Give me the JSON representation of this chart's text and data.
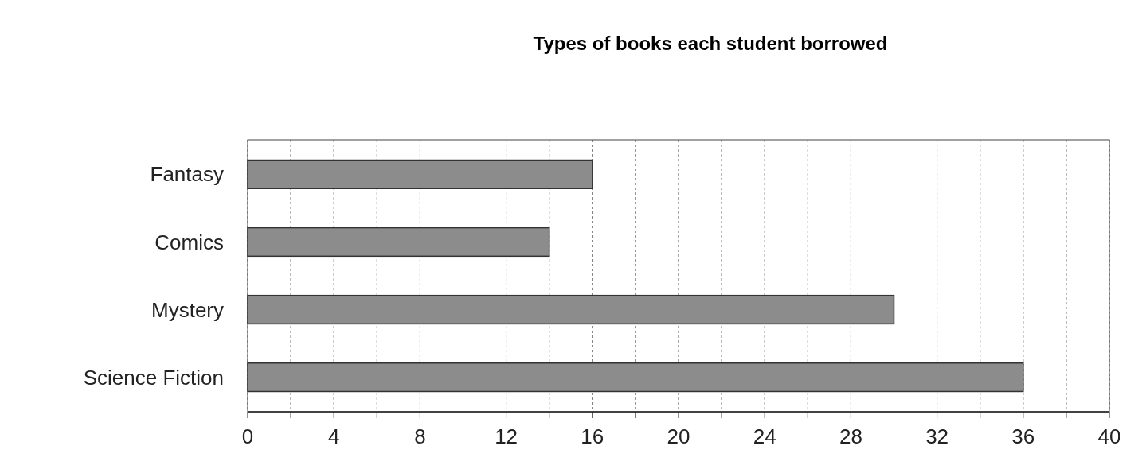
{
  "chart_data": {
    "type": "bar",
    "title": "Types of books each student borrowed",
    "orientation": "horizontal",
    "categories": [
      "Fantasy",
      "Comics",
      "Mystery",
      "Science Fiction"
    ],
    "values": [
      16,
      14,
      30,
      36
    ],
    "color": "#8c8c8c",
    "xlim": [
      0,
      40
    ],
    "xticks": [
      0,
      {
        "value": 2,
        "label": null
      },
      4,
      {
        "value": 6,
        "label": null
      },
      8,
      {
        "value": 10,
        "label": null
      },
      12,
      {
        "value": 14,
        "label": null
      },
      16,
      {
        "value": 18,
        "label": null
      },
      20,
      {
        "value": 22,
        "label": null
      },
      24,
      {
        "value": 26,
        "label": null
      },
      28,
      {
        "value": 30,
        "label": null
      },
      32,
      {
        "value": 34,
        "label": null
      },
      36,
      {
        "value": 38,
        "label": null
      },
      40
    ],
    "grid": "x"
  }
}
